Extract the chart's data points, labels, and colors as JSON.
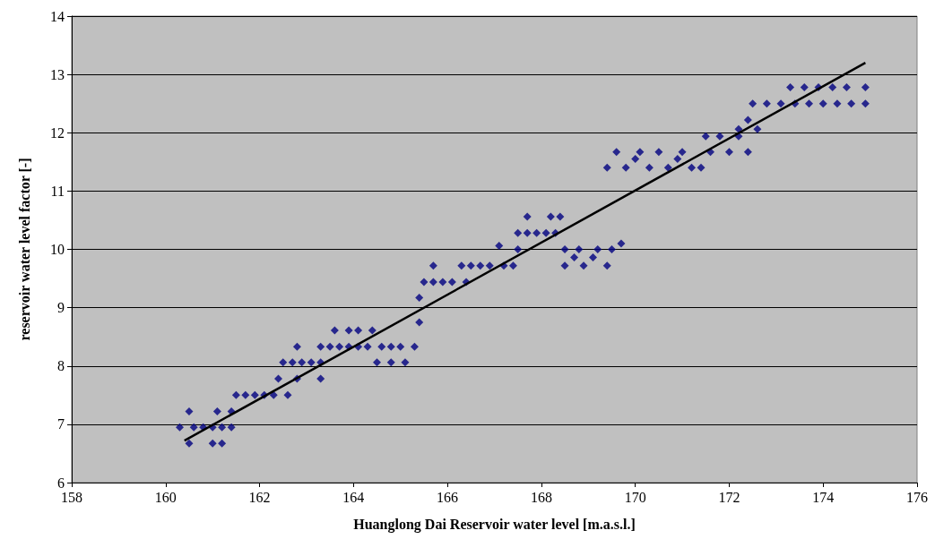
{
  "chart_data": {
    "type": "scatter",
    "xlabel": "Huanglong Dai Reservoir water level [m.a.s.l.]",
    "ylabel": "reservoir water level factor [-]",
    "xlim": [
      158,
      176
    ],
    "xticks": [
      158,
      160,
      162,
      164,
      166,
      168,
      170,
      172,
      174,
      176
    ],
    "ylim": [
      6,
      14
    ],
    "yticks": [
      6,
      7,
      8,
      9,
      10,
      11,
      12,
      13,
      14
    ],
    "grid": "y",
    "series": [
      {
        "marker": "diamond",
        "color": "#00007f",
        "x": [
          160.3,
          160.5,
          160.5,
          160.6,
          160.8,
          161.0,
          161.0,
          161.1,
          161.2,
          161.2,
          161.4,
          161.4,
          161.5,
          161.7,
          161.9,
          162.1,
          162.3,
          162.4,
          162.5,
          162.6,
          162.7,
          162.8,
          162.8,
          162.9,
          163.1,
          163.3,
          163.3,
          163.3,
          163.5,
          163.6,
          163.7,
          163.9,
          163.9,
          164.1,
          164.1,
          164.3,
          164.4,
          164.5,
          164.6,
          164.8,
          164.8,
          165.0,
          165.1,
          165.3,
          165.4,
          165.4,
          165.5,
          165.7,
          165.7,
          165.9,
          166.1,
          166.3,
          166.4,
          166.5,
          166.7,
          166.9,
          167.1,
          167.2,
          167.4,
          167.5,
          167.5,
          167.7,
          167.7,
          167.9,
          168.1,
          168.2,
          168.3,
          168.4,
          168.5,
          168.5,
          168.7,
          168.8,
          168.9,
          169.1,
          169.2,
          169.4,
          169.5,
          169.4,
          169.6,
          169.7,
          169.8,
          170.0,
          170.1,
          170.3,
          170.5,
          170.7,
          170.9,
          171.0,
          171.2,
          171.4,
          171.5,
          171.6,
          171.8,
          172.0,
          172.2,
          172.2,
          172.4,
          172.4,
          172.5,
          172.6,
          172.8,
          173.1,
          173.3,
          173.4,
          173.6,
          173.7,
          173.9,
          174.0,
          174.2,
          174.3,
          174.5,
          174.6,
          174.9,
          174.9
        ],
        "values": [
          6.95,
          6.67,
          7.22,
          6.95,
          6.95,
          6.95,
          6.67,
          7.22,
          6.67,
          6.95,
          6.95,
          7.22,
          7.5,
          7.5,
          7.5,
          7.5,
          7.5,
          7.78,
          8.06,
          7.5,
          8.06,
          8.33,
          7.78,
          8.06,
          8.06,
          8.06,
          8.33,
          7.78,
          8.33,
          8.61,
          8.33,
          8.61,
          8.33,
          8.33,
          8.61,
          8.33,
          8.61,
          8.06,
          8.33,
          8.06,
          8.33,
          8.33,
          8.06,
          8.33,
          8.75,
          9.17,
          9.44,
          9.72,
          9.44,
          9.44,
          9.44,
          9.72,
          9.44,
          9.72,
          9.72,
          9.72,
          10.06,
          9.72,
          9.72,
          10.28,
          10.0,
          10.56,
          10.28,
          10.28,
          10.28,
          10.56,
          10.28,
          10.56,
          10.0,
          9.72,
          9.86,
          10.0,
          9.72,
          9.86,
          10.0,
          9.72,
          10.0,
          11.4,
          11.67,
          10.1,
          11.4,
          11.55,
          11.67,
          11.4,
          11.67,
          11.4,
          11.55,
          11.67,
          11.4,
          11.4,
          11.94,
          11.67,
          11.94,
          11.67,
          12.06,
          11.94,
          11.67,
          12.22,
          12.5,
          12.06,
          12.5,
          12.5,
          12.78,
          12.5,
          12.78,
          12.5,
          12.78,
          12.5,
          12.78,
          12.5,
          12.78,
          12.5,
          12.78,
          12.5
        ]
      },
      {
        "type": "line",
        "marker": "none",
        "color": "#000000",
        "x": [
          160.4,
          174.9
        ],
        "values": [
          6.72,
          13.2
        ]
      }
    ]
  }
}
